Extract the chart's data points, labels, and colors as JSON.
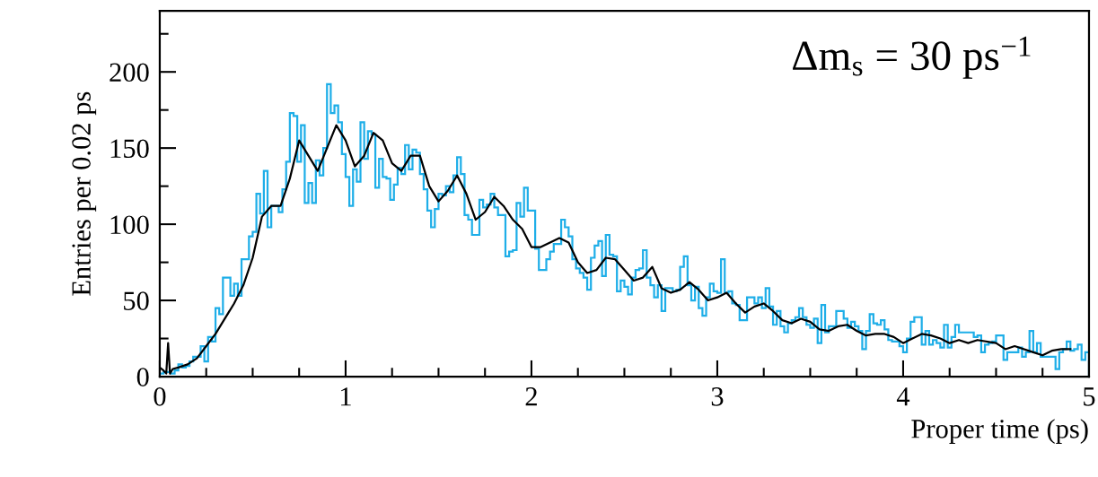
{
  "chart_data": {
    "type": "histogram",
    "xlabel": "Proper time (ps)",
    "ylabel": "Entries per 0.02 ps",
    "annotations": [
      "Δm$_{s}$ = 30 ps$^{−1}$"
    ],
    "xlim": [
      0,
      5
    ],
    "ylim": [
      0,
      240
    ],
    "xticks": [
      0,
      {
        "value": 0.25,
        "label": null
      },
      {
        "value": 0.5,
        "label": null
      },
      {
        "value": 0.75,
        "label": null
      },
      1,
      {
        "value": 1.25,
        "label": null
      },
      {
        "value": 1.5,
        "label": null
      },
      {
        "value": 1.75,
        "label": null
      },
      2,
      {
        "value": 2.25,
        "label": null
      },
      {
        "value": 2.5,
        "label": null
      },
      {
        "value": 2.75,
        "label": null
      },
      3,
      {
        "value": 3.25,
        "label": null
      },
      {
        "value": 3.5,
        "label": null
      },
      {
        "value": 3.75,
        "label": null
      },
      4,
      {
        "value": 4.25,
        "label": null
      },
      {
        "value": 4.5,
        "label": null
      },
      {
        "value": 4.75,
        "label": null
      },
      5
    ],
    "yticks": [
      0,
      {
        "value": 25,
        "label": null
      },
      50,
      {
        "value": 75,
        "label": null
      },
      100,
      {
        "value": 125,
        "label": null
      },
      150,
      {
        "value": 175,
        "label": null
      },
      200,
      {
        "value": 225,
        "label": null
      }
    ],
    "grid": false,
    "bins": [
      0,
      0.02,
      0.04,
      0.06,
      0.08,
      0.1,
      0.12,
      0.14,
      0.16,
      0.18,
      0.2,
      0.22,
      0.24,
      0.26,
      0.28,
      0.3,
      0.32,
      0.34,
      0.36,
      0.38,
      0.4,
      0.42,
      0.44,
      0.46,
      0.48,
      0.5,
      0.52,
      0.54,
      0.56,
      0.58,
      0.6,
      0.62,
      0.64,
      0.66,
      0.68,
      0.7,
      0.72,
      0.74,
      0.76,
      0.78,
      0.8,
      0.82,
      0.84,
      0.86,
      0.88,
      0.9,
      0.92,
      0.94,
      0.96,
      0.98,
      1,
      1.02,
      1.04,
      1.06,
      1.08,
      1.1,
      1.12,
      1.14,
      1.16,
      1.18,
      1.2,
      1.22,
      1.24,
      1.26,
      1.28,
      1.3,
      1.32,
      1.34,
      1.36,
      1.38,
      1.4,
      1.42,
      1.44,
      1.46,
      1.48,
      1.5,
      1.52,
      1.54,
      1.56,
      1.58,
      1.6,
      1.62,
      1.64,
      1.66,
      1.68,
      1.7,
      1.72,
      1.74,
      1.76,
      1.78,
      1.8,
      1.82,
      1.84,
      1.86,
      1.88,
      1.9,
      1.92,
      1.94,
      1.96,
      1.98,
      2,
      2.02,
      2.04,
      2.06,
      2.08,
      2.1,
      2.12,
      2.14,
      2.16,
      2.18,
      2.2,
      2.22,
      2.24,
      2.26,
      2.28,
      2.3,
      2.32,
      2.34,
      2.36,
      2.38,
      2.4,
      2.42,
      2.44,
      2.46,
      2.48,
      2.5,
      2.52,
      2.54,
      2.56,
      2.58,
      2.6,
      2.62,
      2.64,
      2.66,
      2.68,
      2.7,
      2.72,
      2.74,
      2.76,
      2.78,
      2.8,
      2.82,
      2.84,
      2.86,
      2.88,
      2.9,
      2.92,
      2.94,
      2.96,
      2.98,
      3,
      3.02,
      3.04,
      3.06,
      3.08,
      3.1,
      3.12,
      3.14,
      3.16,
      3.18,
      3.2,
      3.22,
      3.24,
      3.26,
      3.28,
      3.3,
      3.32,
      3.34,
      3.36,
      3.38,
      3.4,
      3.42,
      3.44,
      3.46,
      3.48,
      3.5,
      3.52,
      3.54,
      3.56,
      3.58,
      3.6,
      3.62,
      3.64,
      3.66,
      3.68,
      3.7,
      3.72,
      3.74,
      3.76,
      3.78,
      3.8,
      3.82,
      3.84,
      3.86,
      3.88,
      3.9,
      3.92,
      3.94,
      3.96,
      3.98,
      4,
      4.02,
      4.04,
      4.06,
      4.08,
      4.1,
      4.12,
      4.14,
      4.16,
      4.18,
      4.2,
      4.22,
      4.24,
      4.26,
      4.28,
      4.3,
      4.32,
      4.34,
      4.36,
      4.38,
      4.4,
      4.42,
      4.44,
      4.46,
      4.48,
      4.5,
      4.52,
      4.54,
      4.56,
      4.58,
      4.6,
      4.62,
      4.64,
      4.66,
      4.68,
      4.7,
      4.72,
      4.74,
      4.76,
      4.78,
      4.8,
      4.82,
      4.84,
      4.86,
      4.88,
      4.9,
      4.92,
      4.94,
      4.96,
      4.98,
      5
    ],
    "series": [
      {
        "color": "#1eaee8",
        "values": [
          2,
          3,
          3,
          2,
          4,
          8,
          6,
          7,
          10,
          13,
          13,
          20,
          10,
          26,
          23,
          45,
          41,
          65,
          65,
          53,
          61,
          53,
          77,
          77,
          92,
          95,
          120,
          107,
          135,
          98,
          112,
          112,
          108,
          123,
          141,
          173,
          171,
          141,
          165,
          114,
          127,
          114,
          142,
          132,
          150,
          192,
          173,
          178,
          167,
          146,
          131,
          112,
          136,
          128,
          167,
          143,
          161,
          159,
          124,
          143,
          131,
          130,
          116,
          126,
          137,
          133,
          152,
          136,
          149,
          147,
          133,
          123,
          109,
          98,
          110,
          120,
          119,
          125,
          121,
          132,
          144,
          133,
          106,
          103,
          93,
          93,
          116,
          111,
          113,
          120,
          111,
          106,
          106,
          79,
          82,
          83,
          114,
          105,
          124,
          109,
          109,
          84,
          70,
          70,
          77,
          82,
          87,
          87,
          103,
          98,
          92,
          77,
          71,
          68,
          65,
          57,
          78,
          86,
          89,
          66,
          93,
          80,
          79,
          56,
          63,
          59,
          54,
          65,
          70,
          71,
          83,
          65,
          60,
          52,
          60,
          43,
          58,
          58,
          56,
          57,
          72,
          79,
          60,
          50,
          59,
          45,
          40,
          52,
          61,
          56,
          55,
          77,
          55,
          56,
          48,
          47,
          37,
          37,
          52,
          52,
          48,
          52,
          45,
          58,
          46,
          34,
          43,
          33,
          29,
          35,
          37,
          39,
          45,
          39,
          34,
          32,
          38,
          22,
          47,
          29,
          33,
          33,
          43,
          43,
          38,
          32,
          36,
          33,
          30,
          18,
          30,
          41,
          35,
          34,
          37,
          31,
          24,
          23,
          23,
          20,
          16,
          25,
          36,
          39,
          39,
          21,
          30,
          21,
          24,
          22,
          19,
          34,
          19,
          26,
          34,
          29,
          29,
          29,
          29,
          26,
          27,
          16,
          21,
          22,
          23,
          27,
          27,
          11,
          16,
          16,
          16,
          19,
          13,
          16,
          30,
          16,
          22,
          13,
          13,
          13,
          13,
          5,
          16,
          18,
          23,
          17,
          18,
          21,
          11,
          16
        ]
      },
      {
        "type": "line",
        "color": "#000000",
        "x": [
          0,
          0.02,
          0.035,
          0.045,
          0.05,
          0.055,
          0.07,
          0.1,
          0.15,
          0.2,
          0.25,
          0.3,
          0.35,
          0.4,
          0.45,
          0.5,
          0.55,
          0.6,
          0.65,
          0.7,
          0.75,
          0.8,
          0.85,
          0.9,
          0.95,
          1,
          1.05,
          1.1,
          1.15,
          1.2,
          1.25,
          1.3,
          1.35,
          1.4,
          1.45,
          1.5,
          1.55,
          1.6,
          1.65,
          1.7,
          1.75,
          1.8,
          1.85,
          1.9,
          1.95,
          2,
          2.05,
          2.1,
          2.15,
          2.2,
          2.25,
          2.3,
          2.35,
          2.4,
          2.45,
          2.5,
          2.55,
          2.6,
          2.65,
          2.7,
          2.75,
          2.8,
          2.85,
          2.9,
          2.95,
          3,
          3.05,
          3.1,
          3.15,
          3.2,
          3.25,
          3.3,
          3.35,
          3.4,
          3.45,
          3.5,
          3.55,
          3.6,
          3.65,
          3.7,
          3.75,
          3.8,
          3.85,
          3.9,
          3.95,
          4,
          4.05,
          4.1,
          4.15,
          4.2,
          4.25,
          4.3,
          4.35,
          4.4,
          4.5,
          4.55,
          4.6,
          4.7,
          4.75,
          4.8,
          4.85,
          4.9
        ],
        "values": [
          6,
          4,
          2,
          22,
          12,
          2,
          5,
          6,
          8,
          12,
          20,
          28,
          38,
          48,
          60,
          78,
          105,
          112,
          112,
          130,
          155,
          145,
          135,
          150,
          165,
          155,
          138,
          145,
          160,
          155,
          140,
          135,
          145,
          145,
          125,
          115,
          122,
          132,
          120,
          103,
          108,
          118,
          112,
          103,
          97,
          85,
          85,
          88,
          91,
          88,
          75,
          68,
          70,
          78,
          77,
          70,
          63,
          65,
          72,
          58,
          55,
          57,
          62,
          57,
          50,
          52,
          55,
          48,
          42,
          46,
          48,
          43,
          37,
          35,
          38,
          36,
          31,
          30,
          33,
          34,
          30,
          27,
          28,
          28,
          26,
          22,
          25,
          28,
          27,
          25,
          22,
          24,
          22,
          24,
          22,
          18,
          20,
          16,
          14,
          17,
          18,
          18
        ]
      }
    ]
  }
}
